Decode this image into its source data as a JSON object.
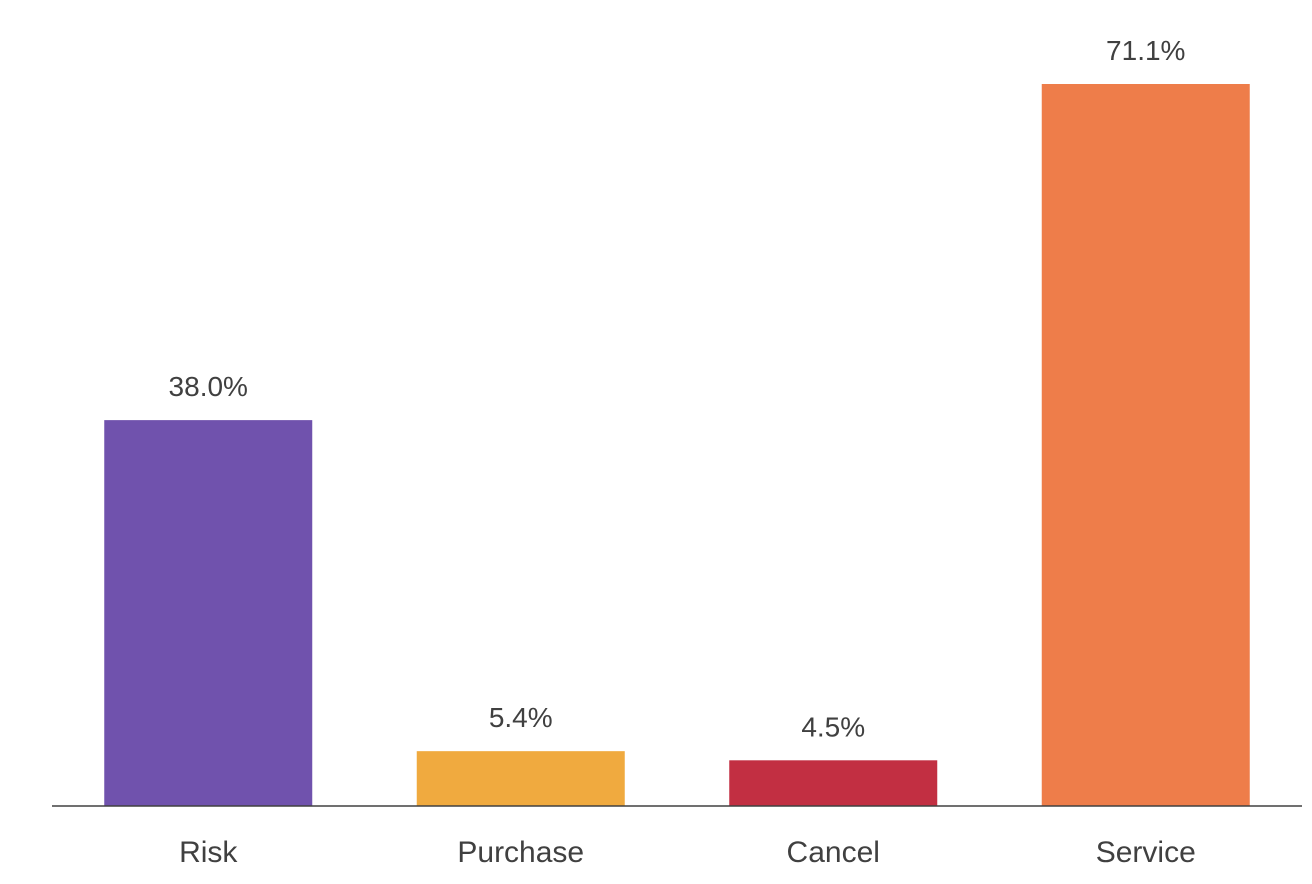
{
  "chart_data": {
    "type": "bar",
    "categories": [
      "Risk",
      "Purchase",
      "Cancel",
      "Service"
    ],
    "values": [
      38.0,
      5.4,
      4.5,
      71.1
    ],
    "value_labels": [
      "38.0%",
      "5.4%",
      "4.5%",
      "71.1%"
    ],
    "unit": "%",
    "colors": [
      "#7052ad",
      "#f0aa3f",
      "#c22f42",
      "#ee7d4a"
    ],
    "axis_color": "#404040",
    "ylim": [
      0,
      71.1
    ],
    "grid": false,
    "legend": "none"
  }
}
